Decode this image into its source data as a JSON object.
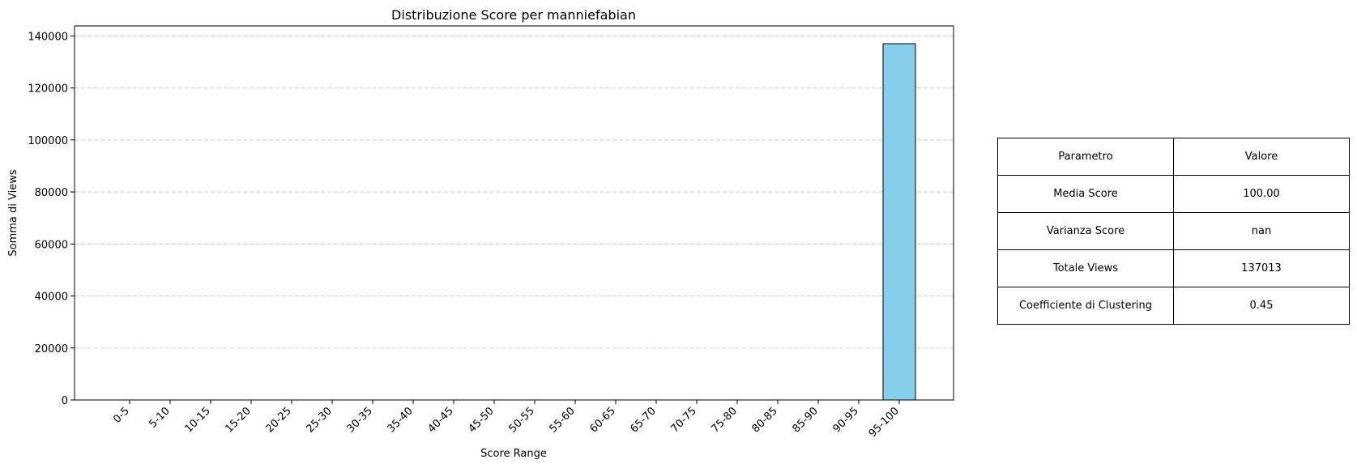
{
  "chart_data": {
    "type": "bar",
    "title": "Distribuzione Score per manniefabian",
    "xlabel": "Score Range",
    "ylabel": "Somma di Views",
    "categories": [
      "0-5",
      "5-10",
      "10-15",
      "15-20",
      "20-25",
      "25-30",
      "30-35",
      "35-40",
      "40-45",
      "45-50",
      "50-55",
      "55-60",
      "60-65",
      "65-70",
      "70-75",
      "75-80",
      "80-85",
      "85-90",
      "90-95",
      "95-100"
    ],
    "values": [
      0,
      0,
      0,
      0,
      0,
      0,
      0,
      0,
      0,
      0,
      0,
      0,
      0,
      0,
      0,
      0,
      0,
      0,
      0,
      137013
    ],
    "ylim": [
      0,
      143861
    ],
    "yticks": [
      0,
      20000,
      40000,
      60000,
      80000,
      100000,
      120000,
      140000
    ],
    "grid": "y-dashed",
    "legend": "none",
    "bar_color": "#87ceeb",
    "edge_color": "#000000",
    "grid_color": "#c8c8c8"
  },
  "table": {
    "header": [
      "Parametro",
      "Valore"
    ],
    "rows": [
      [
        "Media Score",
        "100.00"
      ],
      [
        "Varianza Score",
        "nan"
      ],
      [
        "Totale Views",
        "137013"
      ],
      [
        "Coefficiente di Clustering",
        "0.45"
      ]
    ]
  }
}
